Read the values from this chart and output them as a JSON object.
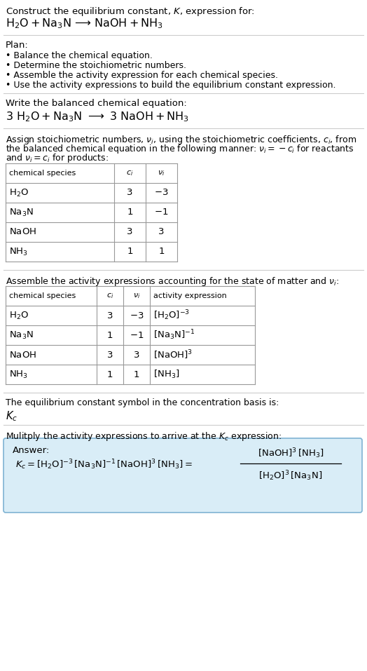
{
  "title_line1": "Construct the equilibrium constant, $K$, expression for:",
  "title_line2_parts": [
    "$\\mathrm{H_2O + Na_3N}$",
    " ⟶ ",
    "$\\mathrm{NaOH + NH_3}$"
  ],
  "plan_header": "Plan:",
  "plan_bullets": [
    "• Balance the chemical equation.",
    "• Determine the stoichiometric numbers.",
    "• Assemble the activity expression for each chemical species.",
    "• Use the activity expressions to build the equilibrium constant expression."
  ],
  "balanced_header": "Write the balanced chemical equation:",
  "balanced_eq": "$\\mathrm{3\\ H_2O + Na_3N\\ \\longrightarrow\\ 3\\ NaOH + NH_3}$",
  "stoich_line1": "Assign stoichiometric numbers, $\\nu_i$, using the stoichiometric coefficients, $c_i$, from",
  "stoich_line2": "the balanced chemical equation in the following manner: $\\nu_i = -c_i$ for reactants",
  "stoich_line3": "and $\\nu_i = c_i$ for products:",
  "table1_cols": [
    "chemical species",
    "$c_i$",
    "$\\nu_i$"
  ],
  "table1_rows": [
    [
      "$\\mathrm{H_2O}$",
      "3",
      "$-3$"
    ],
    [
      "$\\mathrm{Na_3N}$",
      "1",
      "$-1$"
    ],
    [
      "$\\mathrm{NaOH}$",
      "3",
      "3"
    ],
    [
      "$\\mathrm{NH_3}$",
      "1",
      "1"
    ]
  ],
  "activity_header": "Assemble the activity expressions accounting for the state of matter and $\\nu_i$:",
  "table2_cols": [
    "chemical species",
    "$c_i$",
    "$\\nu_i$",
    "activity expression"
  ],
  "table2_rows": [
    [
      "$\\mathrm{H_2O}$",
      "3",
      "$-3$",
      "$[\\mathrm{H_2O}]^{-3}$"
    ],
    [
      "$\\mathrm{Na_3N}$",
      "1",
      "$-1$",
      "$[\\mathrm{Na_3N}]^{-1}$"
    ],
    [
      "$\\mathrm{NaOH}$",
      "3",
      "3",
      "$[\\mathrm{NaOH}]^3$"
    ],
    [
      "$\\mathrm{NH_3}$",
      "1",
      "1",
      "$[\\mathrm{NH_3}]$"
    ]
  ],
  "kc_header": "The equilibrium constant symbol in the concentration basis is:",
  "kc_symbol": "$K_c$",
  "multiply_header": "Mulitply the activity expressions to arrive at the $K_c$ expression:",
  "answer_label": "Answer:",
  "answer_eq": "$K_c = [\\mathrm{H_2O}]^{-3}\\,[\\mathrm{Na_3N}]^{-1}\\,[\\mathrm{NaOH}]^3\\,[\\mathrm{NH_3}] = $",
  "answer_num": "$[\\mathrm{NaOH}]^3\\,[\\mathrm{NH_3}]$",
  "answer_den": "$[\\mathrm{H_2O}]^3\\,[\\mathrm{Na_3N}]$",
  "answer_box_color": "#d9edf7",
  "answer_box_border": "#7fb3d3",
  "bg_color": "#ffffff",
  "text_color": "#000000",
  "table_border": "#999999",
  "sep_color": "#cccccc",
  "font_size": 9.5
}
